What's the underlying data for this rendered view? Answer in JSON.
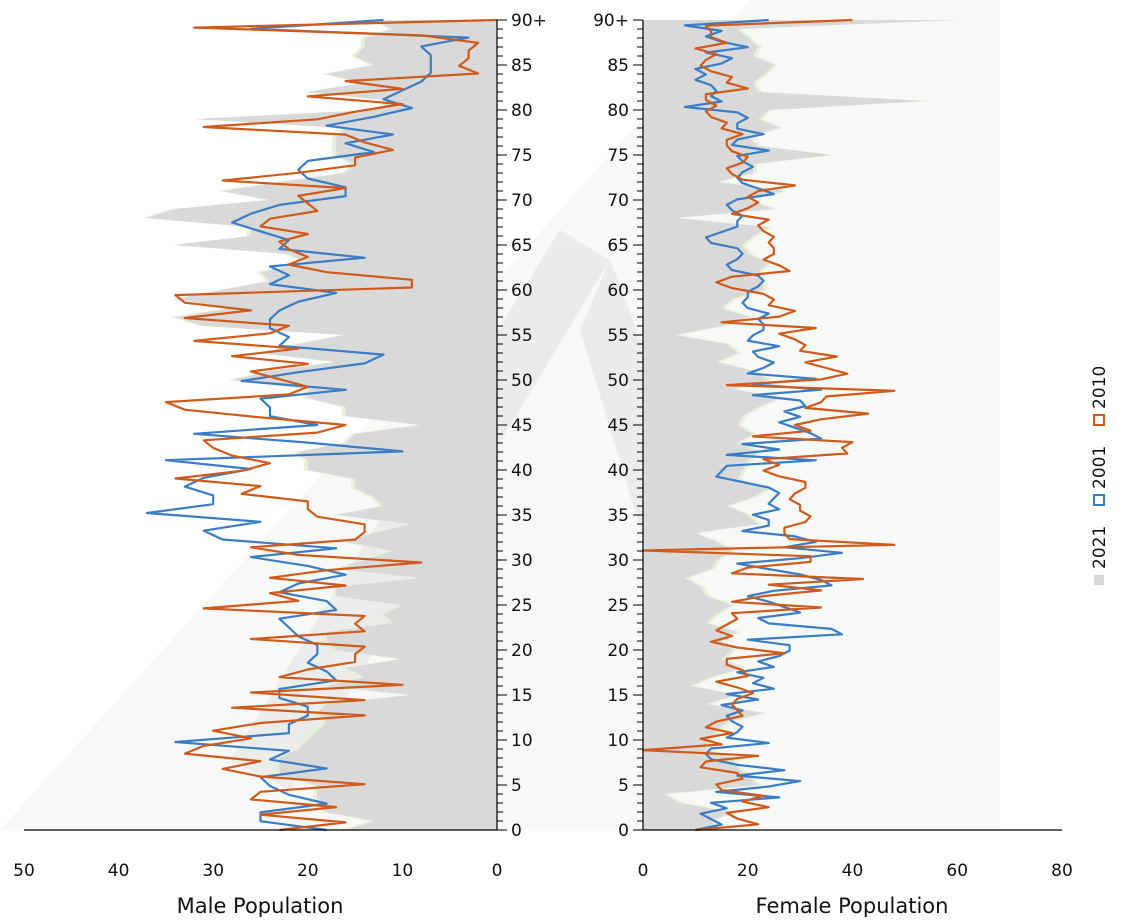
{
  "chart_data": [
    {
      "panel": "male",
      "type": "area",
      "xlabel": "Male Population",
      "xlim": [
        0,
        50
      ],
      "x_direction": "reversed",
      "x_ticks": [
        "50",
        "40",
        "30",
        "20",
        "10",
        "0"
      ],
      "y_ticks": [
        "0",
        "5",
        "10",
        "15",
        "20",
        "25",
        "30",
        "35",
        "40",
        "45",
        "50",
        "55",
        "60",
        "65",
        "70",
        "75",
        "80",
        "85",
        "90+"
      ],
      "ylim": [
        0,
        90
      ],
      "y_axis_position": "right",
      "y_categories": "ages 0 to 90+ (single years)",
      "series": [
        {
          "name": "2021",
          "style": "filled-area",
          "values": [
            16,
            13,
            18,
            19,
            19,
            19,
            23,
            23,
            23,
            21,
            20,
            19,
            18,
            19,
            18,
            9,
            18,
            14,
            16,
            10,
            17,
            18,
            18,
            11,
            12,
            10,
            17,
            17,
            8,
            17,
            14,
            11,
            16,
            13,
            9,
            17,
            12,
            13,
            15,
            15,
            20,
            20,
            21,
            16,
            15,
            8,
            16,
            16,
            20,
            20,
            28,
            24,
            17,
            25,
            21,
            16,
            31,
            34,
            28,
            34,
            29,
            24,
            25,
            20,
            22,
            34,
            26,
            26,
            37,
            34,
            24,
            29,
            23,
            16,
            15,
            17,
            17,
            17,
            16,
            32,
            13,
            11,
            20,
            14,
            18,
            13,
            15,
            14,
            14,
            11,
            13
          ]
        },
        {
          "name": "2001",
          "style": "line",
          "values": [
            18,
            25,
            25,
            18,
            22,
            24,
            25,
            18,
            24,
            22,
            34,
            22,
            22,
            20,
            20,
            23,
            23,
            17,
            18,
            20,
            19,
            19,
            21,
            22,
            23,
            17,
            18,
            23,
            21,
            16,
            20,
            26,
            17,
            29,
            31,
            25,
            37,
            30,
            30,
            33,
            31,
            26,
            35,
            10,
            20,
            32,
            19,
            24,
            24,
            25,
            16,
            27,
            21,
            14,
            12,
            23,
            22,
            24,
            24,
            23,
            21,
            17,
            24,
            22,
            24,
            14,
            23,
            22,
            25,
            28,
            26,
            23,
            16,
            16,
            20,
            21,
            20,
            13,
            16,
            11,
            18,
            13,
            9,
            12,
            10,
            8,
            7,
            7,
            7,
            8,
            3,
            26,
            12
          ]
        },
        {
          "name": "2010",
          "style": "line",
          "values": [
            23,
            16,
            25,
            17,
            26,
            25,
            14,
            25,
            29,
            25,
            33,
            31,
            26,
            30,
            25,
            14,
            28,
            14,
            26,
            10,
            23,
            20,
            15,
            15,
            14,
            26,
            14,
            15,
            14,
            31,
            21,
            24,
            16,
            24,
            18,
            8,
            21,
            26,
            15,
            14,
            14,
            19,
            20,
            20,
            27,
            25,
            34,
            27,
            24,
            28,
            30,
            31,
            19,
            16,
            25,
            33,
            35,
            22,
            20,
            23,
            26,
            20,
            28,
            21,
            32,
            24,
            22,
            33,
            26,
            33,
            34,
            9,
            9,
            18,
            22,
            20,
            22,
            23,
            20,
            25,
            24,
            19,
            20,
            21,
            16,
            29,
            21,
            15,
            15,
            11,
            14,
            16,
            31,
            19,
            15,
            10,
            20,
            10,
            16,
            2,
            4,
            3,
            3,
            2,
            8,
            32,
            0
          ]
        }
      ],
      "legend": {
        "position": "right",
        "orientation": "vertical",
        "entries": [
          "2021",
          "2001",
          "2010"
        ]
      }
    },
    {
      "panel": "female",
      "type": "area",
      "xlabel": "Female Population",
      "xlim": [
        0,
        80
      ],
      "x_ticks": [
        "0",
        "20",
        "40",
        "60",
        "80"
      ],
      "y_ticks": [
        "0",
        "5",
        "10",
        "15",
        "20",
        "25",
        "30",
        "35",
        "40",
        "45",
        "50",
        "55",
        "60",
        "65",
        "70",
        "75",
        "80",
        "85",
        "90+"
      ],
      "ylim": [
        0,
        90
      ],
      "y_axis_position": "left",
      "series": [
        {
          "name": "2021",
          "style": "filled-area",
          "values": [
            14,
            13,
            17,
            7,
            4,
            22,
            20,
            18,
            17,
            12,
            13,
            14,
            16,
            23,
            12,
            18,
            9,
            13,
            19,
            15,
            17,
            15,
            18,
            12,
            14,
            17,
            12,
            11,
            8,
            13,
            14,
            17,
            14,
            10,
            22,
            20,
            16,
            21,
            24,
            18,
            19,
            20,
            22,
            18,
            21,
            18,
            19,
            22,
            26,
            17,
            24,
            21,
            14,
            18,
            16,
            6,
            15,
            20,
            15,
            17,
            23,
            23,
            22,
            24,
            20,
            19,
            21,
            24,
            6,
            25,
            20,
            27,
            14,
            21,
            21,
            36,
            22,
            20,
            26,
            22,
            24,
            54,
            22,
            21,
            23,
            25,
            21,
            22,
            20,
            18,
            60
          ]
        },
        {
          "name": "2001",
          "style": "line",
          "values": [
            10,
            15,
            13,
            11,
            16,
            13,
            26,
            14,
            24,
            30,
            18,
            27,
            18,
            13,
            12,
            13,
            24,
            16,
            18,
            19,
            17,
            16,
            19,
            15,
            22,
            16,
            25,
            21,
            23,
            18,
            25,
            22,
            26,
            28,
            28,
            20,
            38,
            36,
            24,
            22,
            30,
            27,
            24,
            20,
            25,
            36,
            34,
            30,
            24,
            18,
            30,
            38,
            27,
            33,
            29,
            19,
            24,
            24,
            21,
            26,
            24,
            25,
            26,
            24,
            19,
            14,
            15,
            16,
            33,
            16,
            26,
            19,
            34,
            32,
            29,
            26,
            30,
            27,
            31,
            30,
            21,
            34,
            21,
            33,
            20,
            23,
            25,
            22,
            21,
            26,
            20,
            21,
            23,
            23,
            22,
            24,
            20,
            19,
            20,
            20,
            22,
            23,
            22,
            17,
            16,
            18,
            19,
            18,
            13,
            12,
            15,
            18,
            18,
            19,
            17,
            16,
            18,
            25,
            22,
            19,
            18,
            19,
            21,
            19,
            18,
            24,
            17,
            18,
            23,
            18,
            18,
            20,
            18,
            8,
            15,
            13,
            14,
            13,
            10,
            12,
            10,
            15,
            17,
            12,
            20,
            15,
            12,
            15,
            8,
            24
          ]
        },
        {
          "name": "2010",
          "style": "line",
          "values": [
            10,
            22,
            18,
            16,
            24,
            19,
            23,
            15,
            14,
            19,
            18,
            11,
            12,
            22,
            0,
            15,
            11,
            17,
            12,
            14,
            19,
            18,
            17,
            18,
            21,
            18,
            14,
            20,
            19,
            16,
            16,
            27,
            18,
            13,
            17,
            14,
            16,
            18,
            17,
            34,
            17,
            23,
            34,
            24,
            42,
            17,
            20,
            32,
            32,
            0,
            48,
            28,
            27,
            27,
            31,
            32,
            30,
            30,
            28,
            29,
            31,
            31,
            26,
            23,
            26,
            23,
            39,
            38,
            40,
            21,
            32,
            29,
            34,
            43,
            31,
            34,
            35,
            48,
            16,
            34,
            39,
            35,
            31,
            37,
            30,
            31,
            29,
            26,
            33,
            15,
            26,
            29,
            24,
            25,
            23,
            17,
            14,
            17,
            28,
            26,
            23,
            25,
            25,
            24,
            25,
            23,
            22,
            24,
            17,
            20,
            22,
            20,
            22,
            29,
            19,
            17,
            16,
            19,
            20,
            17,
            16,
            16,
            19,
            15,
            16,
            13,
            12,
            14,
            12,
            12,
            20,
            16,
            17,
            13,
            11,
            12,
            14,
            10,
            16,
            13,
            13,
            12,
            40
          ]
        }
      ]
    }
  ]
}
